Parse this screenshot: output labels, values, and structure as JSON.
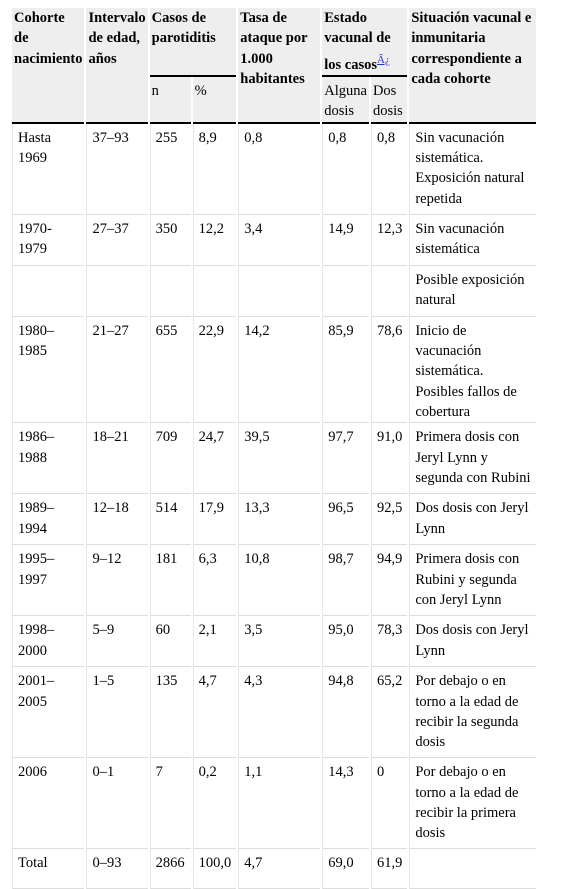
{
  "table": {
    "header": {
      "cohort": "Cohorte de nacimiento",
      "age": "Intervalo de edad, años",
      "cases": "Casos de parotiditis",
      "rate": "Tasa de ataque por 1.000 habitantes",
      "vaccine_status": "Estado vacunal de los casos",
      "footnote_mark": "Â¿",
      "situation": "Situación vacunal e inmunitaria correspondiente a cada cohorte",
      "sub": [
        "n",
        "%",
        "Alguna dosis",
        "Dos dosis"
      ]
    },
    "rows": [
      [
        "Hasta 1969",
        "37–93",
        "255",
        "8,9",
        "0,8",
        "0,8",
        "0,8",
        "Sin vacunación sistemática. Exposición natural repetida"
      ],
      [
        "1970-1979",
        "27–37",
        "350",
        "12,2",
        "3,4",
        "14,9",
        "12,3",
        "Sin vacunación sistemática"
      ],
      [
        null,
        null,
        null,
        null,
        null,
        null,
        null,
        "Posible exposición natural"
      ],
      [
        "1980–1985",
        "21–27",
        "655",
        "22,9",
        "14,2",
        "85,9",
        "78,6",
        "Inicio de vacunación sistemática. Posibles fallos de cobertura"
      ],
      [
        "1986–1988",
        "18–21",
        "709",
        "24,7",
        "39,5",
        "97,7",
        "91,0",
        "Primera dosis con Jeryl Lynn y segunda con Rubini"
      ],
      [
        "1989–1994",
        "12–18",
        "514",
        "17,9",
        "13,3",
        "96,5",
        "92,5",
        "Dos dosis con Jeryl Lynn"
      ],
      [
        "1995–1997",
        "9–12",
        "181",
        "6,3",
        "10,8",
        "98,7",
        "94,9",
        "Primera dosis con Rubini y segunda con Jeryl Lynn"
      ],
      [
        "1998–2000",
        "5–9",
        "60",
        "2,1",
        "3,5",
        "95,0",
        "78,3",
        "Dos dosis con Jeryl Lynn"
      ],
      [
        "2001–2005",
        "1–5",
        "135",
        "4,7",
        "4,3",
        "94,8",
        "65,2",
        "Por debajo o en torno a la edad de recibir la segunda dosis"
      ],
      [
        "2006",
        "0–1",
        "7",
        "0,2",
        "1,1",
        "14,3",
        "0",
        "Por debajo o en torno a la edad de recibir la primera dosis"
      ],
      [
        "Total",
        "0–93",
        "2866",
        "100,0",
        "4,7",
        "69,0",
        "61,9",
        null
      ]
    ]
  }
}
